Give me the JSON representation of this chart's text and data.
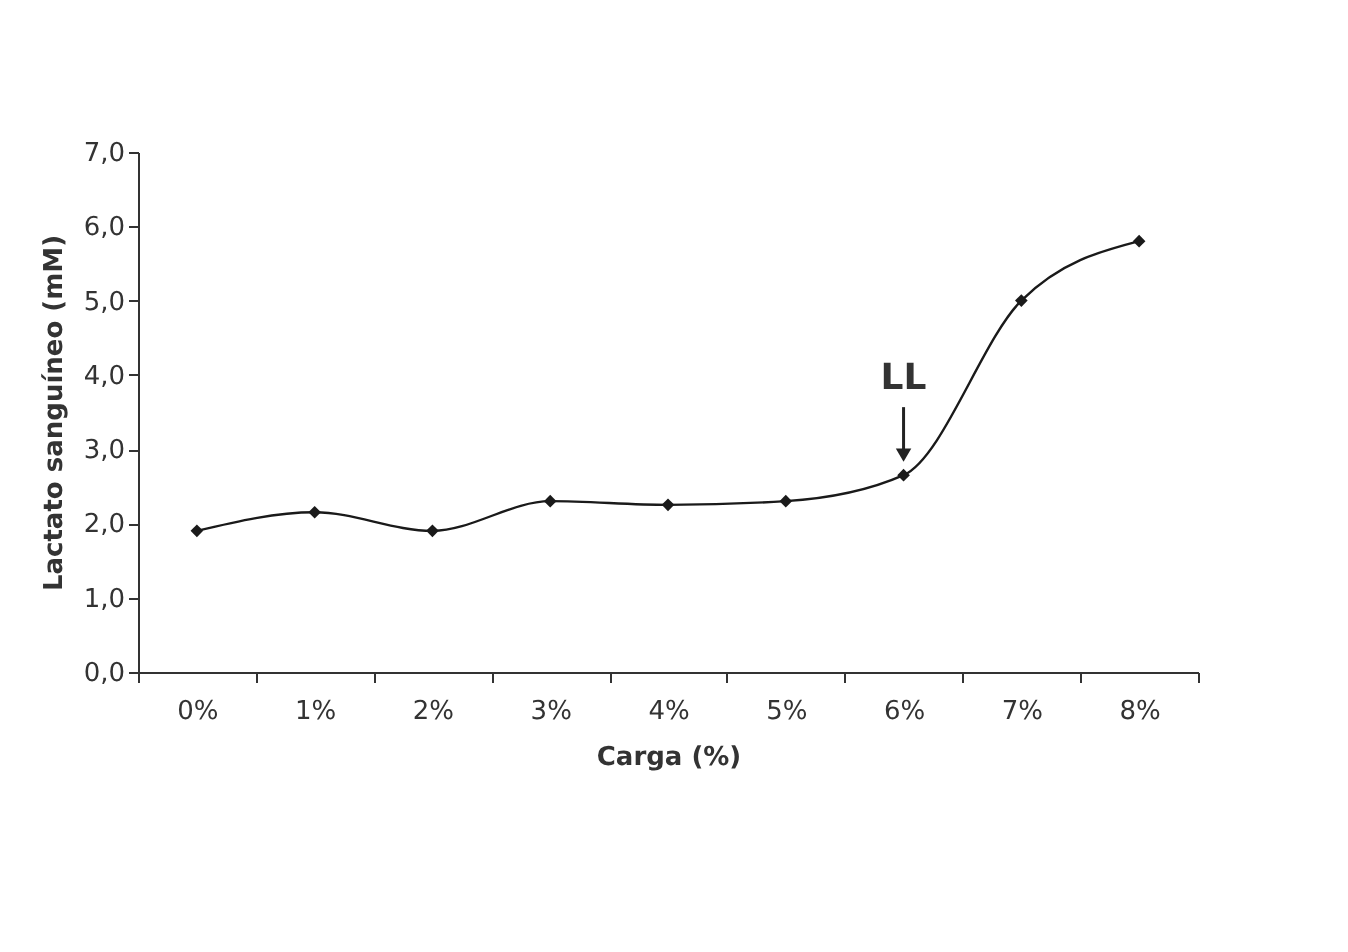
{
  "chart_data": {
    "type": "line",
    "xlabel": "Carga (%)",
    "ylabel": "Lactato sanguíneo (mM)",
    "categories": [
      "0%",
      "1%",
      "2%",
      "3%",
      "4%",
      "5%",
      "6%",
      "7%",
      "8%"
    ],
    "series": [
      {
        "color": "#1a1a1a",
        "values": [
          1.9,
          2.15,
          1.9,
          2.3,
          2.25,
          2.3,
          2.65,
          5.0,
          5.8
        ]
      }
    ],
    "ylim": [
      0,
      7
    ],
    "yticks": [
      {
        "value": 0,
        "label": "0,0"
      },
      {
        "value": 1,
        "label": "1,0"
      },
      {
        "value": 2,
        "label": "2,0"
      },
      {
        "value": 3,
        "label": "3,0"
      },
      {
        "value": 4,
        "label": "4,0"
      },
      {
        "value": 5,
        "label": "5,0"
      },
      {
        "value": 6,
        "label": "6,0"
      },
      {
        "value": 7,
        "label": "7,0"
      }
    ],
    "annotations": [
      {
        "text": "LL",
        "x": "6%",
        "y": 2.65
      }
    ],
    "marker": "diamond",
    "line_style": "solid",
    "grid": false
  }
}
